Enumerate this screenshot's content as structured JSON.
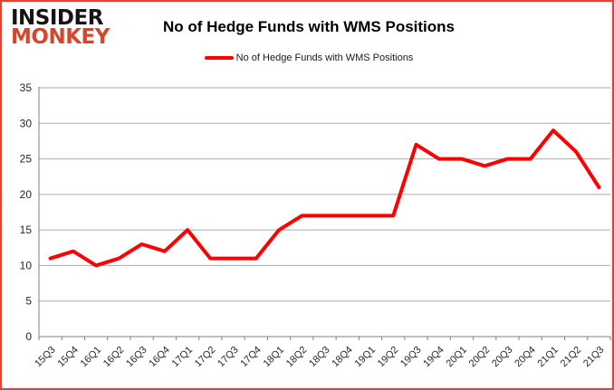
{
  "logo": {
    "line1": "INSIDER",
    "line2": "MONKEY"
  },
  "header": {
    "title": "No of Hedge Funds with WMS Positions"
  },
  "legend": {
    "label": "No of Hedge Funds with WMS Positions"
  },
  "colors": {
    "line": "#FF0000",
    "grid": "#ABABAB",
    "axis": "#808080",
    "tick_label": "#262626",
    "logo_black": "#151515",
    "logo_red": "#D5472B",
    "frame_border": "#E8402C"
  },
  "chart_data": {
    "type": "line",
    "title": "No of Hedge Funds with WMS Positions",
    "xlabel": "",
    "ylabel": "",
    "categories": [
      "15Q3",
      "15Q4",
      "16Q1",
      "16Q2",
      "16Q3",
      "16Q4",
      "17Q1",
      "17Q2",
      "17Q3",
      "17Q4",
      "18Q1",
      "18Q2",
      "18Q3",
      "18Q4",
      "19Q1",
      "19Q2",
      "19Q3",
      "19Q4",
      "20Q1",
      "20Q2",
      "20Q3",
      "20Q4",
      "21Q1",
      "21Q2",
      "21Q3"
    ],
    "series": [
      {
        "name": "No of Hedge Funds with WMS Positions",
        "values": [
          11,
          12,
          10,
          11,
          13,
          12,
          15,
          11,
          11,
          11,
          15,
          17,
          17,
          17,
          17,
          17,
          27,
          25,
          25,
          24,
          25,
          25,
          29,
          26,
          21
        ]
      }
    ],
    "ylim": [
      0,
      35
    ],
    "ytick_step": 5,
    "grid": "horizontal",
    "legend_position": "top"
  }
}
